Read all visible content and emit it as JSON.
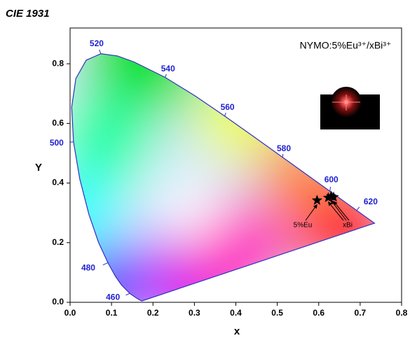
{
  "chart_data": {
    "type": "cie",
    "title": "CIE 1931",
    "annotation": "NYMO:5%Eu³⁺/xBi³⁺",
    "xlabel": "x",
    "ylabel": "Y",
    "xlim": [
      0,
      0.8
    ],
    "ylim": [
      0,
      0.92
    ],
    "xticks": [
      {
        "value": 0,
        "label": "0.0"
      },
      0.1,
      0.2,
      0.3,
      0.4,
      0.5,
      0.6,
      0.7,
      0.8
    ],
    "yticks": [
      {
        "value": 0,
        "label": "0.0"
      },
      0.2,
      0.4,
      0.6,
      0.8
    ],
    "locus": {
      "color": "#3030c0",
      "x": [
        0.1741,
        0.1714,
        0.1644,
        0.1566,
        0.144,
        0.1241,
        0.1096,
        0.0913,
        0.0687,
        0.0454,
        0.0235,
        0.0082,
        0.0039,
        0.0139,
        0.0389,
        0.0743,
        0.1142,
        0.1547,
        0.2296,
        0.3016,
        0.3731,
        0.4441,
        0.5125,
        0.5752,
        0.627,
        0.6658,
        0.6915,
        0.719,
        0.7347
      ],
      "y": [
        0.005,
        0.0051,
        0.0109,
        0.0177,
        0.0297,
        0.0578,
        0.0868,
        0.1327,
        0.2007,
        0.295,
        0.4127,
        0.5384,
        0.6548,
        0.7502,
        0.812,
        0.8338,
        0.8262,
        0.8059,
        0.7543,
        0.6923,
        0.6245,
        0.5547,
        0.4866,
        0.4242,
        0.3725,
        0.334,
        0.3083,
        0.2809,
        0.2653
      ]
    },
    "wavelength_labels": [
      {
        "value": 460,
        "x": 0.144,
        "y": 0.0297
      },
      {
        "value": 480,
        "x": 0.0913,
        "y": 0.1327
      },
      {
        "value": 500,
        "x": 0.0082,
        "y": 0.5384
      },
      {
        "value": 520,
        "x": 0.0743,
        "y": 0.8338
      },
      {
        "value": 540,
        "x": 0.2296,
        "y": 0.7543
      },
      {
        "value": 560,
        "x": 0.3731,
        "y": 0.6245
      },
      {
        "value": 580,
        "x": 0.5125,
        "y": 0.4866
      },
      {
        "value": 600,
        "x": 0.627,
        "y": 0.3725
      },
      {
        "value": 620,
        "x": 0.6915,
        "y": 0.3083
      }
    ],
    "points": [
      {
        "label": "5%Eu",
        "x": [
          0.596
        ],
        "y": [
          0.342
        ]
      },
      {
        "label": "xBi",
        "x": [
          0.623,
          0.63,
          0.636
        ],
        "y": [
          0.351,
          0.356,
          0.353
        ]
      }
    ]
  }
}
